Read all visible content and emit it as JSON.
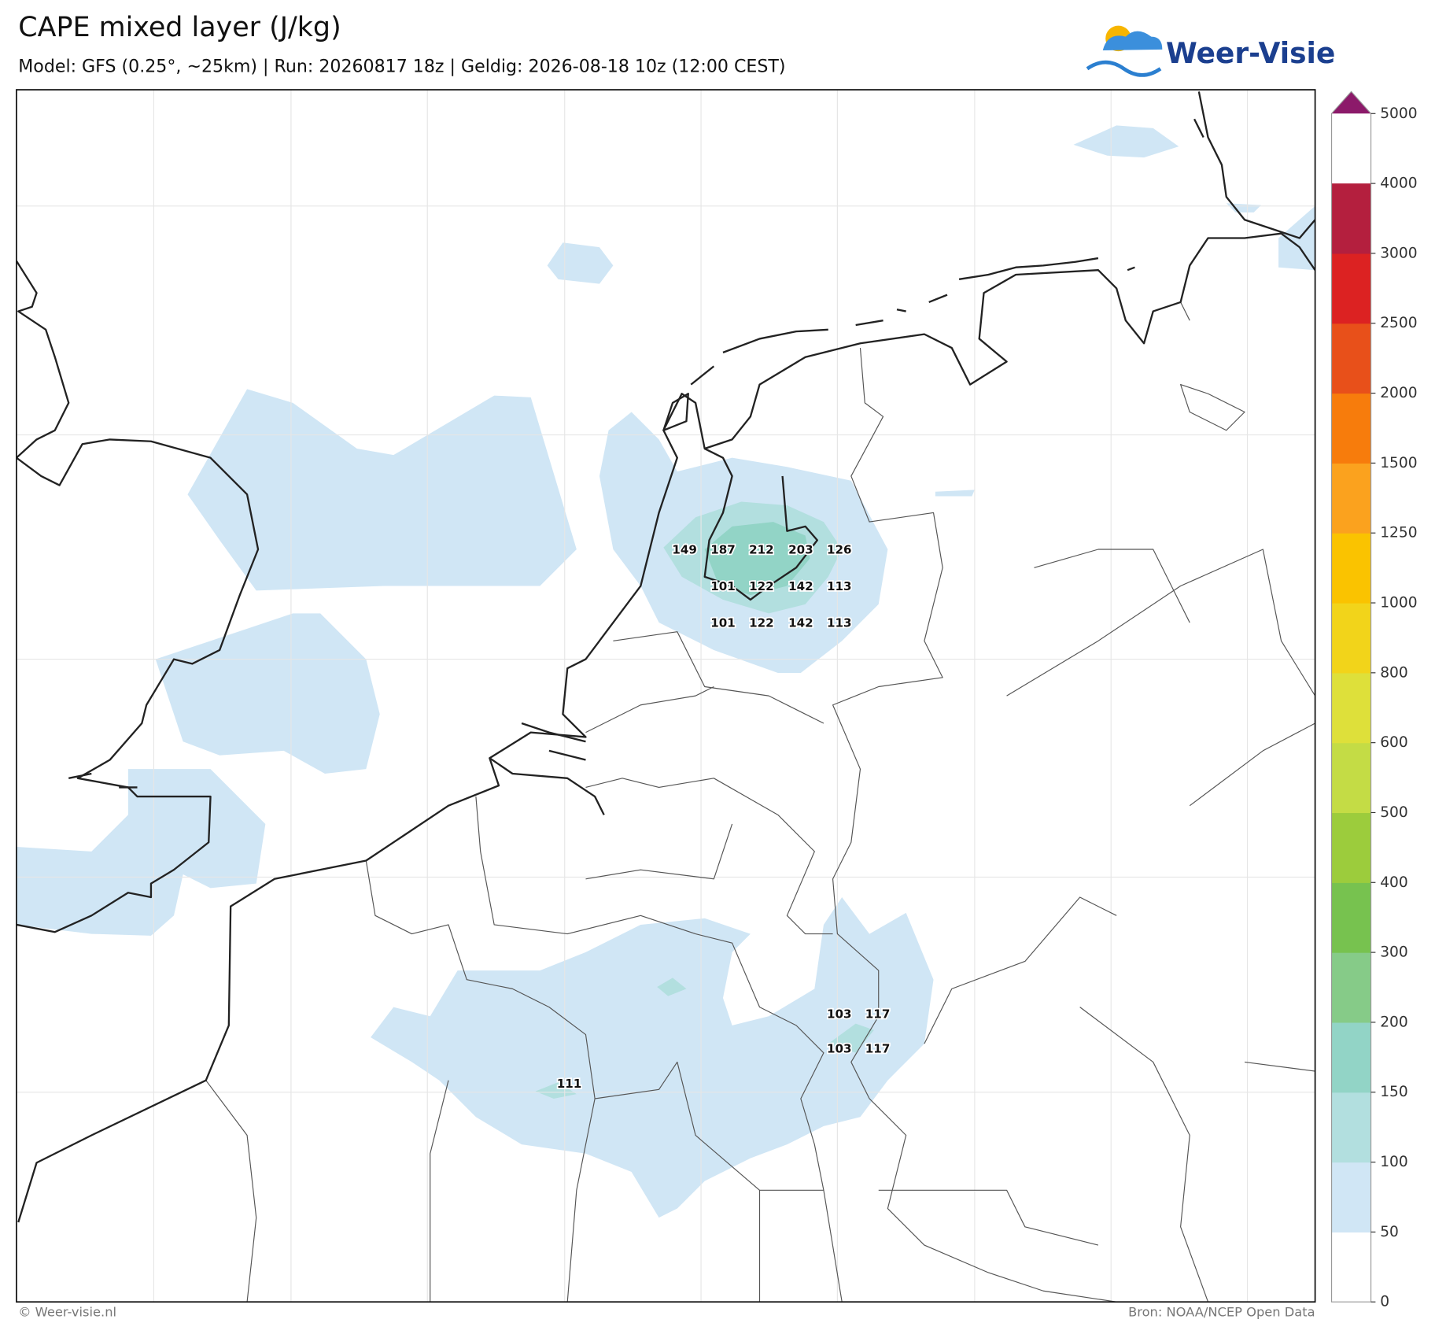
{
  "header": {
    "title": "CAPE mixed layer (J/kg)",
    "subtitle": "Model: GFS (0.25°, ~25km)  |  Run: 20260817 18z  |  Geldig: 2026-08-18 10z (12:00 CEST)",
    "logo": "Weer-Visie"
  },
  "map": {
    "value_labels": [
      149,
      187,
      212,
      203,
      126,
      101,
      122,
      142,
      113,
      101,
      122,
      142,
      113,
      103,
      117,
      103,
      117,
      111
    ]
  },
  "colorbar": {
    "ticks": [
      0,
      50,
      100,
      150,
      200,
      300,
      400,
      500,
      600,
      800,
      1000,
      1250,
      1500,
      2000,
      2500,
      3000,
      4000,
      5000
    ],
    "colors": [
      "#ffffff",
      "#d0e6f5",
      "#b2dfdf",
      "#92d4c6",
      "#86cb88",
      "#77c24f",
      "#9ccc3c",
      "#c4dc45",
      "#dee03a",
      "#f2d41a",
      "#fac300",
      "#fba21e",
      "#f77c0c",
      "#e8501a",
      "#dc2222",
      "#b41f3e"
    ],
    "extend_color": "#8c1a6a"
  },
  "footer": {
    "left": "© Weer-visie.nl",
    "right": "Bron: NOAA/NCEP Open Data"
  }
}
